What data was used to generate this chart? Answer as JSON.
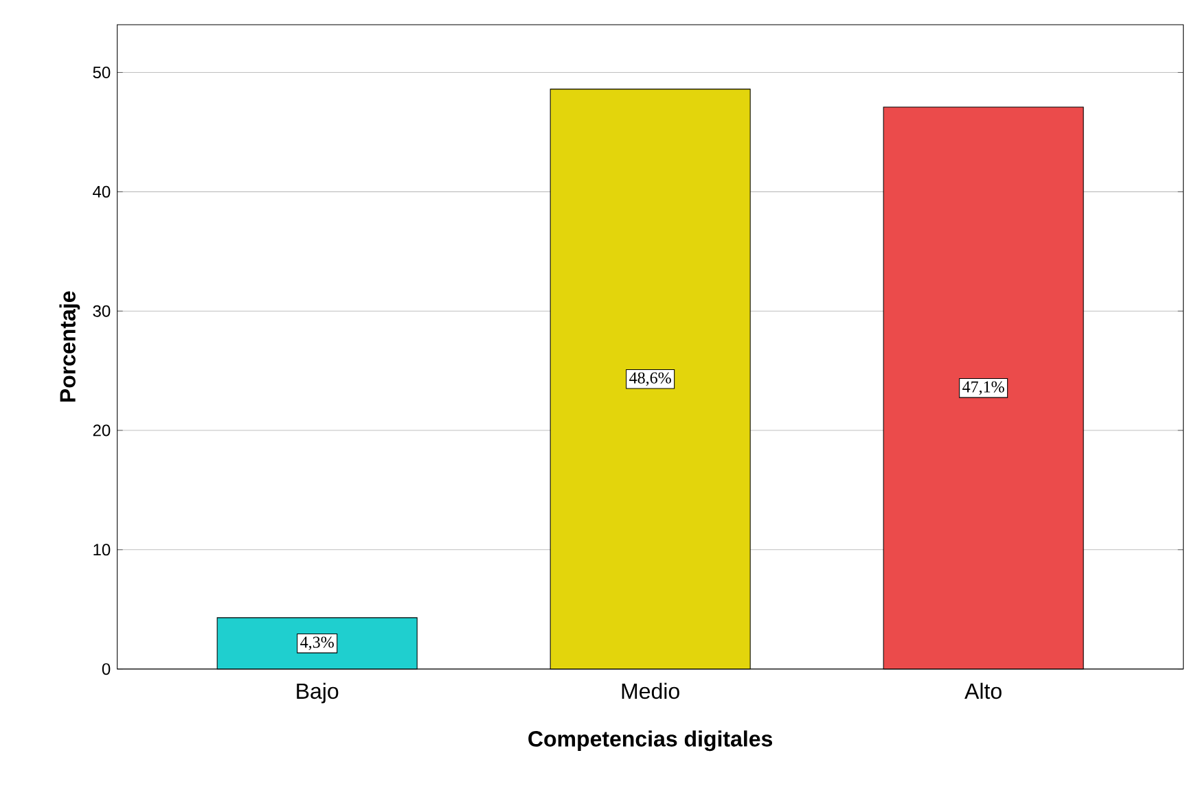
{
  "chart_data": {
    "type": "bar",
    "xlabel": "Competencias digitales",
    "ylabel": "Porcentaje",
    "categories": [
      "Bajo",
      "Medio",
      "Alto"
    ],
    "values": [
      4.3,
      48.6,
      47.1
    ],
    "colors": [
      "#1fcfcf",
      "#e3d50c",
      "#eb4b4b"
    ],
    "value_labels": [
      "4,3%",
      "48,6%",
      "47,1%"
    ],
    "ylim": [
      0,
      54
    ],
    "yticks": [
      0,
      10,
      20,
      30,
      40,
      50
    ],
    "grid": "y"
  }
}
